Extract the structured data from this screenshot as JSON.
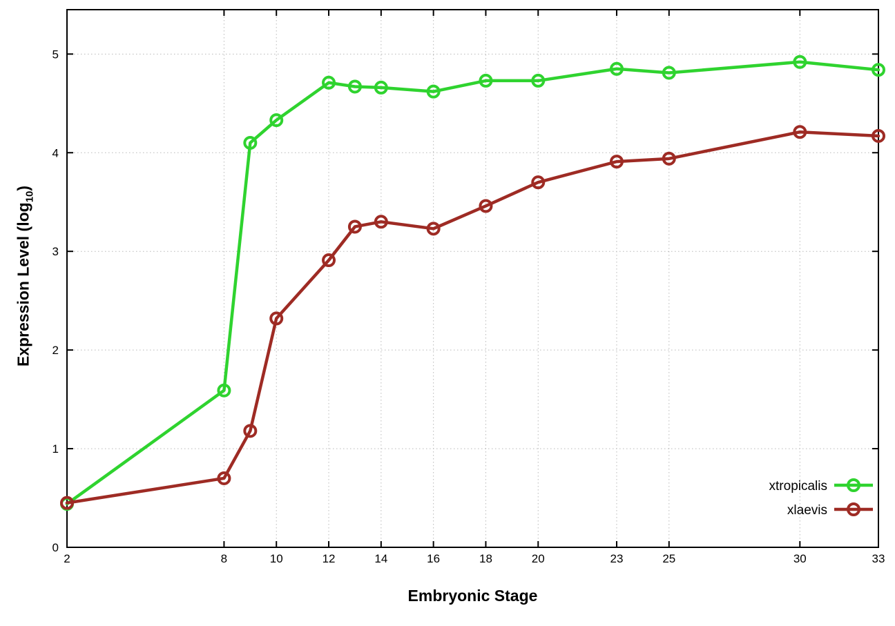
{
  "chart_data": {
    "type": "line",
    "title": "",
    "xlabel": "Embryonic Stage",
    "ylabel": "Expression Level (log10)",
    "ylabel_parts": {
      "prefix": "Expression Level (log",
      "sub": "10",
      "suffix": ")"
    },
    "x": [
      2,
      8,
      9,
      10,
      12,
      13,
      14,
      16,
      18,
      20,
      23,
      25,
      30,
      33
    ],
    "xticks": [
      2,
      8,
      10,
      12,
      14,
      16,
      18,
      20,
      23,
      25,
      30,
      33
    ],
    "yticks": [
      0,
      1,
      2,
      3,
      4,
      5
    ],
    "xlim": [
      2,
      33
    ],
    "ylim": [
      0,
      5.45
    ],
    "grid": true,
    "legend_position": "bottom-right",
    "series": [
      {
        "name": "xtropicalis",
        "color": "#2fd32f",
        "values": [
          0.44,
          1.59,
          4.1,
          4.33,
          4.71,
          4.67,
          4.66,
          4.62,
          4.73,
          4.73,
          4.85,
          4.81,
          4.92,
          4.84
        ]
      },
      {
        "name": "xlaevis",
        "color": "#9e2b24",
        "values": [
          0.45,
          0.7,
          1.18,
          2.32,
          2.91,
          3.25,
          3.3,
          3.23,
          3.46,
          3.7,
          3.91,
          3.94,
          4.21,
          4.17
        ]
      }
    ],
    "colors": {
      "border": "#000000",
      "grid": "#b8b8b8",
      "background": "#ffffff"
    }
  }
}
